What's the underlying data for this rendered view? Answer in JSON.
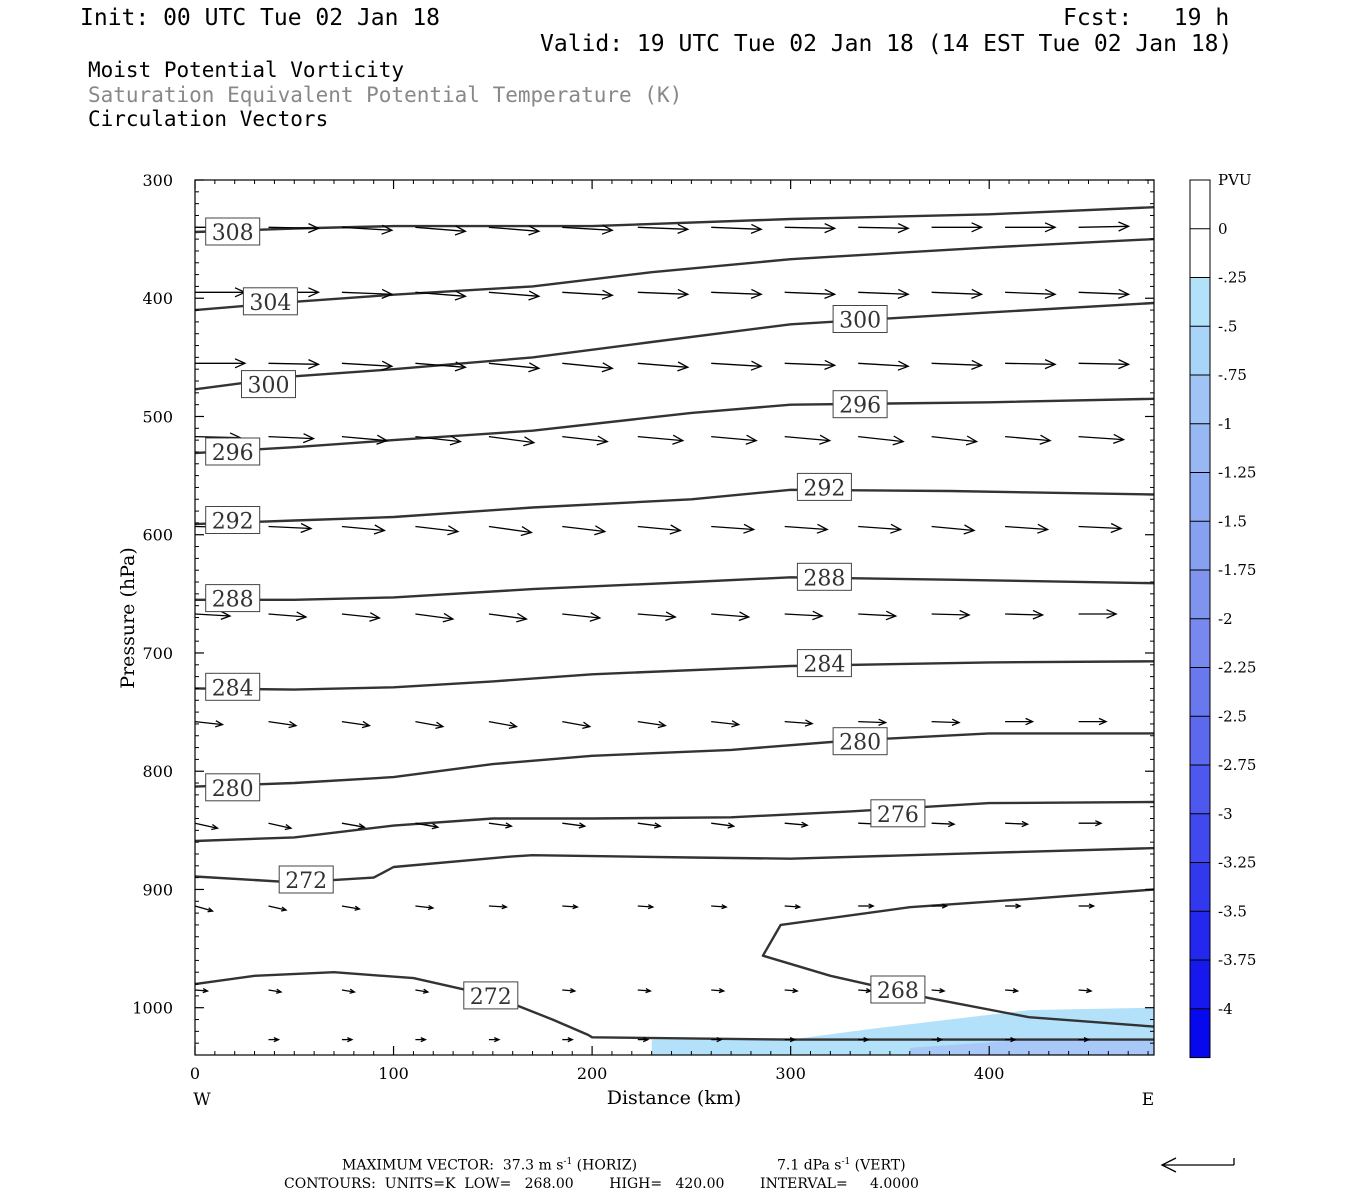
{
  "header": {
    "init": "Init: 00 UTC Tue 02 Jan 18",
    "fcst": "Fcst:   19 h",
    "valid": "Valid: 19 UTC Tue 02 Jan 18 (14 EST Tue 02 Jan 18)"
  },
  "titles": {
    "line1": "Moist Potential Vorticity",
    "line2": "Saturation Equivalent Potential Temperature (K)",
    "line3": "Circulation Vectors"
  },
  "colors": {
    "line2_gray": "#888888",
    "contour": "#333333",
    "fill_light": "#b4e1fa",
    "fill_mid": "#a8c8f8"
  },
  "chart_data": {
    "type": "cross-section",
    "xlabel": "Distance (km)",
    "ylabel": "Pressure (hPa)",
    "xlim": [
      0,
      483
    ],
    "ylim": [
      1040,
      300
    ],
    "x_ticks": [
      0,
      100,
      200,
      300,
      400
    ],
    "x_tick_labels": [
      "0",
      "100",
      "200",
      "300",
      "400"
    ],
    "y_ticks": [
      300,
      400,
      500,
      600,
      700,
      800,
      900,
      1000
    ],
    "y_tick_labels": [
      "300",
      "400",
      "500",
      "600",
      "700",
      "800",
      "900",
      "1000"
    ],
    "west_label": "W",
    "east_label": "E",
    "contours": [
      {
        "level": 308,
        "points": [
          [
            0,
            344
          ],
          [
            50,
            341
          ],
          [
            100,
            339
          ],
          [
            200,
            339
          ],
          [
            300,
            333
          ],
          [
            400,
            329
          ],
          [
            483,
            323
          ]
        ]
      },
      {
        "level": 304,
        "points": [
          [
            0,
            410
          ],
          [
            50,
            403
          ],
          [
            100,
            397
          ],
          [
            170,
            390
          ],
          [
            230,
            378
          ],
          [
            300,
            367
          ],
          [
            400,
            357
          ],
          [
            483,
            350
          ]
        ]
      },
      {
        "level": 300,
        "points": [
          [
            0,
            477
          ],
          [
            50,
            466
          ],
          [
            100,
            460
          ],
          [
            170,
            450
          ],
          [
            230,
            437
          ],
          [
            300,
            422
          ],
          [
            400,
            412
          ],
          [
            483,
            404
          ]
        ]
      },
      {
        "level": 296,
        "points": [
          [
            0,
            531
          ],
          [
            50,
            526
          ],
          [
            100,
            520
          ],
          [
            170,
            512
          ],
          [
            250,
            497
          ],
          [
            300,
            490
          ],
          [
            400,
            488
          ],
          [
            483,
            485
          ]
        ]
      },
      {
        "level": 292,
        "points": [
          [
            0,
            591
          ],
          [
            50,
            588
          ],
          [
            100,
            585
          ],
          [
            170,
            577
          ],
          [
            250,
            570
          ],
          [
            300,
            562
          ],
          [
            380,
            563
          ],
          [
            483,
            566
          ]
        ]
      },
      {
        "level": 288,
        "points": [
          [
            0,
            655
          ],
          [
            50,
            655
          ],
          [
            100,
            653
          ],
          [
            170,
            646
          ],
          [
            250,
            640
          ],
          [
            300,
            636
          ],
          [
            380,
            638
          ],
          [
            483,
            641
          ]
        ]
      },
      {
        "level": 284,
        "points": [
          [
            0,
            730
          ],
          [
            50,
            731
          ],
          [
            100,
            729
          ],
          [
            150,
            724
          ],
          [
            200,
            718
          ],
          [
            300,
            711
          ],
          [
            400,
            708
          ],
          [
            483,
            707
          ]
        ]
      },
      {
        "level": 280,
        "points": [
          [
            0,
            813
          ],
          [
            50,
            810
          ],
          [
            100,
            805
          ],
          [
            150,
            794
          ],
          [
            200,
            787
          ],
          [
            270,
            782
          ],
          [
            330,
            774
          ],
          [
            400,
            768
          ],
          [
            483,
            768
          ]
        ]
      },
      {
        "level": 276,
        "points": [
          [
            0,
            859
          ],
          [
            50,
            856
          ],
          [
            100,
            846
          ],
          [
            150,
            840
          ],
          [
            200,
            840
          ],
          [
            270,
            839
          ],
          [
            330,
            834
          ],
          [
            400,
            827
          ],
          [
            483,
            826
          ]
        ]
      },
      {
        "level": 272,
        "points": [
          [
            0,
            889
          ],
          [
            50,
            894
          ],
          [
            90,
            890
          ],
          [
            100,
            881
          ],
          [
            160,
            872
          ],
          [
            170,
            871
          ],
          [
            250,
            873
          ],
          [
            300,
            874
          ],
          [
            400,
            869
          ],
          [
            483,
            865
          ]
        ]
      },
      {
        "level": 268,
        "points": [
          [
            483,
            900
          ],
          [
            420,
            908
          ],
          [
            360,
            915
          ],
          [
            295,
            930
          ],
          [
            286,
            956
          ],
          [
            320,
            973
          ],
          [
            370,
            992
          ],
          [
            420,
            1008
          ],
          [
            483,
            1016
          ]
        ]
      },
      {
        "level": 272,
        "points": [
          [
            0,
            980
          ],
          [
            30,
            973
          ],
          [
            70,
            970
          ],
          [
            110,
            975
          ],
          [
            150,
            990
          ],
          [
            180,
            1010
          ],
          [
            198,
            1023
          ],
          [
            200,
            1025
          ],
          [
            300,
            1027
          ],
          [
            483,
            1027
          ]
        ]
      }
    ],
    "contour_labels": [
      {
        "text": "308",
        "x": 19,
        "y": 344
      },
      {
        "text": "304",
        "x": 38,
        "y": 403
      },
      {
        "text": "300",
        "x": 37,
        "y": 473
      },
      {
        "text": "300",
        "x": 335,
        "y": 418
      },
      {
        "text": "296",
        "x": 19,
        "y": 530
      },
      {
        "text": "296",
        "x": 335,
        "y": 490
      },
      {
        "text": "292",
        "x": 19,
        "y": 588
      },
      {
        "text": "292",
        "x": 317,
        "y": 560
      },
      {
        "text": "288",
        "x": 19,
        "y": 654
      },
      {
        "text": "288",
        "x": 317,
        "y": 636
      },
      {
        "text": "284",
        "x": 19,
        "y": 729
      },
      {
        "text": "284",
        "x": 317,
        "y": 709
      },
      {
        "text": "280",
        "x": 19,
        "y": 814
      },
      {
        "text": "280",
        "x": 335,
        "y": 775
      },
      {
        "text": "276",
        "x": 354,
        "y": 836
      },
      {
        "text": "272",
        "x": 56,
        "y": 892
      },
      {
        "text": "268",
        "x": 354,
        "y": 985
      },
      {
        "text": "272",
        "x": 149,
        "y": 990
      }
    ],
    "vector_rows": [
      {
        "p": 340,
        "x": [
          0,
          37,
          74,
          111,
          148,
          185,
          223,
          260,
          297,
          334,
          371,
          408,
          445
        ],
        "u": [
          1,
          1,
          1,
          1,
          1,
          1,
          1,
          1,
          1,
          1,
          1,
          1,
          1
        ],
        "dp": [
          0,
          1,
          3,
          4,
          4,
          3,
          2,
          2,
          1,
          1,
          0,
          0,
          -1
        ]
      },
      {
        "p": 395,
        "x": [
          0,
          37,
          74,
          111,
          148,
          185,
          223,
          260,
          297,
          334,
          371,
          408,
          445
        ],
        "u": [
          1,
          1,
          1,
          1,
          1,
          1,
          1,
          1,
          1,
          1,
          1,
          1,
          1
        ],
        "dp": [
          0,
          0,
          2,
          4,
          4,
          3,
          2,
          2,
          2,
          2,
          2,
          2,
          2
        ]
      },
      {
        "p": 455,
        "x": [
          0,
          37,
          74,
          111,
          148,
          185,
          223,
          260,
          297,
          334,
          371,
          408,
          445
        ],
        "u": [
          1,
          1,
          1,
          1,
          1,
          1,
          1,
          1,
          1,
          1,
          1,
          1,
          1
        ],
        "dp": [
          0,
          1,
          3,
          4,
          5,
          5,
          4,
          3,
          2,
          3,
          2,
          1,
          1
        ]
      },
      {
        "p": 517,
        "x": [
          0,
          37,
          74,
          111,
          148,
          185,
          223,
          260,
          297,
          334,
          371,
          408,
          445
        ],
        "u": [
          0.9,
          0.9,
          0.9,
          0.9,
          0.9,
          0.9,
          0.9,
          0.9,
          0.9,
          0.9,
          0.9,
          0.9,
          0.9
        ],
        "dp": [
          1,
          2,
          4,
          5,
          6,
          5,
          4,
          4,
          4,
          5,
          5,
          4,
          3
        ]
      },
      {
        "p": 593,
        "x": [
          0,
          37,
          74,
          111,
          148,
          185,
          223,
          260,
          297,
          334,
          371,
          408,
          445
        ],
        "u": [
          0.85,
          0.85,
          0.85,
          0.85,
          0.85,
          0.85,
          0.85,
          0.85,
          0.85,
          0.85,
          0.85,
          0.85,
          0.85
        ],
        "dp": [
          1,
          2,
          4,
          5,
          6,
          5,
          4,
          3,
          3,
          3,
          4,
          3,
          2
        ]
      },
      {
        "p": 667,
        "x": [
          0,
          37,
          74,
          111,
          148,
          185,
          223,
          260,
          297,
          334,
          371,
          408,
          445
        ],
        "u": [
          0.7,
          0.75,
          0.75,
          0.75,
          0.75,
          0.75,
          0.75,
          0.75,
          0.75,
          0.75,
          0.75,
          0.75,
          0.75
        ],
        "dp": [
          2,
          3,
          4,
          5,
          5,
          4,
          3,
          3,
          2,
          2,
          1,
          1,
          0
        ]
      },
      {
        "p": 758,
        "x": [
          0,
          37,
          74,
          111,
          148,
          185,
          223,
          260,
          297,
          334,
          371,
          408,
          445
        ],
        "u": [
          0.55,
          0.55,
          0.55,
          0.55,
          0.55,
          0.55,
          0.55,
          0.55,
          0.55,
          0.55,
          0.55,
          0.55,
          0.55
        ],
        "dp": [
          3,
          4,
          4,
          5,
          5,
          5,
          4,
          3,
          2,
          1,
          1,
          0,
          0
        ]
      },
      {
        "p": 844,
        "x": [
          0,
          37,
          74,
          111,
          148,
          185,
          223,
          260,
          297,
          334,
          371,
          408,
          445
        ],
        "u": [
          0.45,
          0.45,
          0.45,
          0.45,
          0.45,
          0.45,
          0.45,
          0.45,
          0.45,
          0.45,
          0.45,
          0.45,
          0.45
        ],
        "dp": [
          5,
          5,
          4,
          4,
          3,
          3,
          3,
          3,
          2,
          1,
          1,
          1,
          0
        ]
      },
      {
        "p": 914,
        "x": [
          0,
          37,
          74,
          111,
          148,
          185,
          223,
          260,
          297,
          334,
          371,
          408,
          445
        ],
        "u": [
          0.35,
          0.35,
          0.35,
          0.35,
          0.35,
          0.3,
          0.3,
          0.3,
          0.3,
          0.3,
          0.3,
          0.3,
          0.3
        ],
        "dp": [
          5,
          4,
          3,
          2,
          1,
          1,
          1,
          1,
          1,
          0,
          0,
          0,
          0
        ]
      },
      {
        "p": 985,
        "x": [
          0,
          37,
          74,
          111,
          148,
          185,
          223,
          260,
          297,
          334,
          371,
          408,
          445
        ],
        "u": [
          0.25,
          0.25,
          0.25,
          0.25,
          0.25,
          0.25,
          0.25,
          0.25,
          0.25,
          0.25,
          0.25,
          0.25,
          0.25
        ],
        "dp": [
          1,
          2,
          2,
          2,
          2,
          1,
          1,
          1,
          1,
          1,
          1,
          1,
          1
        ]
      },
      {
        "p": 1027,
        "x": [
          37,
          74,
          111,
          148,
          185,
          223,
          260,
          297,
          334,
          371,
          408,
          445
        ],
        "u": [
          0.2,
          0.2,
          0.2,
          0.2,
          0.2,
          0.2,
          0.2,
          0.2,
          0.2,
          0.2,
          0.2,
          0.2
        ],
        "dp": [
          0,
          0,
          0,
          0,
          0,
          0,
          0,
          0,
          0,
          0,
          0,
          0
        ]
      }
    ],
    "shading": [
      {
        "range": "-0.25 to -0.5",
        "color": "#b4e1fa",
        "points": [
          [
            230,
            1027
          ],
          [
            300,
            1027
          ],
          [
            340,
            1018
          ],
          [
            380,
            1010
          ],
          [
            420,
            1002
          ],
          [
            483,
            1000
          ],
          [
            483,
            1040
          ],
          [
            230,
            1040
          ]
        ]
      },
      {
        "range": "-0.5 to -0.75",
        "color": "#a8c8f8",
        "points": [
          [
            360,
            1034
          ],
          [
            420,
            1027
          ],
          [
            483,
            1028
          ],
          [
            483,
            1040
          ],
          [
            360,
            1040
          ]
        ]
      }
    ],
    "colorbar": {
      "unit": "PVU",
      "labels": [
        "0",
        "-.25",
        "-.5",
        "-.75",
        "-1",
        "-1.25",
        "-1.5",
        "-1.75",
        "-2",
        "-2.25",
        "-2.5",
        "-2.75",
        "-3",
        "-3.25",
        "-3.5",
        "-3.75",
        "-4"
      ],
      "colors": [
        "#ffffff",
        "#ffffff",
        "#b4e1fa",
        "#a8d4f8",
        "#a0c4f6",
        "#98b8f4",
        "#90acf2",
        "#88a0f0",
        "#8094ee",
        "#7888ee",
        "#6a78ee",
        "#5c68ee",
        "#4e58ee",
        "#4048ee",
        "#3238ee",
        "#2428ee",
        "#1618ee",
        "#0808ee"
      ]
    }
  },
  "footer": {
    "max_vector": "MAXIMUM VECTOR:  37.3 m s",
    "max_vector_sup": "-1",
    "horiz": " (HORIZ)",
    "vert_value": "7.1 dPa s",
    "vert_sup": "-1",
    "vert": " (VERT)",
    "contours": "CONTOURS:  UNITS=K  LOW=   268.00        HIGH=   420.00        INTERVAL=     4.0000"
  }
}
